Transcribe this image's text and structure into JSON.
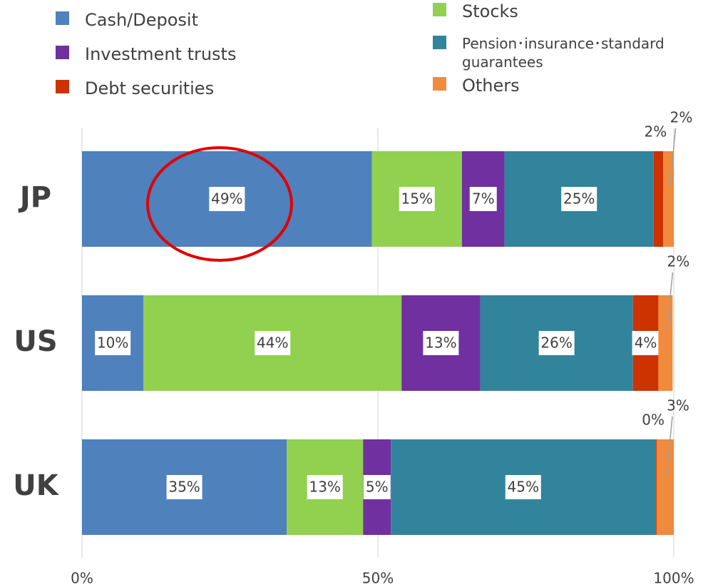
{
  "chart_data": {
    "type": "stacked-bar-horizontal",
    "categories": [
      "JP",
      "US",
      "UK"
    ],
    "series": [
      {
        "name": "Cash/Deposit",
        "color": "#4f81bd",
        "values": [
          49.0,
          10.4,
          34.6
        ],
        "value_labels": [
          "49%",
          "10%",
          "35%"
        ]
      },
      {
        "name": "Stocks",
        "color": "#92d050",
        "values": [
          15.2,
          43.6,
          12.9
        ],
        "value_labels": [
          "15%",
          "44%",
          "13%"
        ]
      },
      {
        "name": "Investment trusts",
        "color": "#7030a0",
        "values": [
          7.2,
          13.3,
          4.7
        ],
        "value_labels": [
          "7%",
          "13%",
          "5%"
        ]
      },
      {
        "name": "Pension･insurance･standard guarantees",
        "color": "#31849b",
        "values": [
          25.2,
          25.8,
          44.7
        ],
        "value_labels": [
          "25%",
          "26%",
          "45%"
        ]
      },
      {
        "name": "Debt securities",
        "color": "#cc3300",
        "values": [
          1.6,
          4.3,
          0.2
        ],
        "value_labels": [
          "2%",
          "4%",
          "0%"
        ]
      },
      {
        "name": "Others",
        "color": "#f08a3c",
        "values": [
          1.8,
          2.4,
          2.9
        ],
        "value_labels": [
          "2%",
          "2%",
          "3%"
        ]
      }
    ],
    "xlim": [
      0,
      100
    ],
    "xticks": [
      {
        "value": 0,
        "label": "0%"
      },
      {
        "value": 50,
        "label": "50%"
      },
      {
        "value": 100,
        "label": "100%"
      }
    ],
    "grid": true
  }
}
